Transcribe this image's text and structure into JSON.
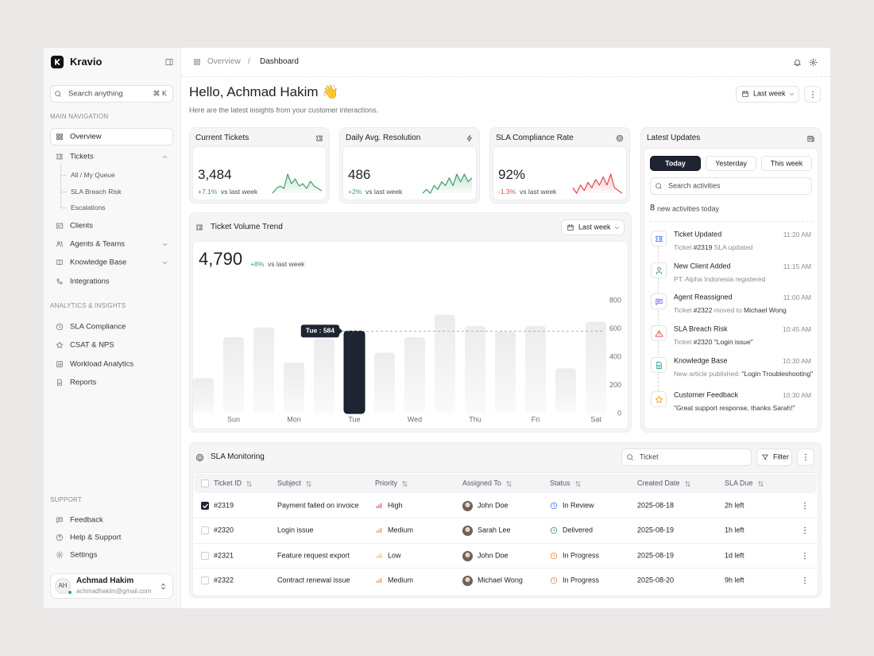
{
  "sidebar": {
    "brand": "Kravio",
    "search_placeholder": "Search anything",
    "search_shortcut": "⌘ K",
    "sections": [
      {
        "title": "MAIN NAVIGATION",
        "items": [
          {
            "label": "Overview",
            "active": true
          },
          {
            "label": "Tickets",
            "expanded": true,
            "children": [
              "All / My Queue",
              "SLA Breach Risk",
              "Escalations"
            ]
          },
          {
            "label": "Clients"
          },
          {
            "label": "Agents & Teams",
            "expandable": true
          },
          {
            "label": "Knowledge Base",
            "expandable": true
          },
          {
            "label": "Integrations"
          }
        ]
      },
      {
        "title": "ANALYTICS & INSIGHTS",
        "items": [
          {
            "label": "SLA Compliance"
          },
          {
            "label": "CSAT & NPS"
          },
          {
            "label": "Workload Analytics"
          },
          {
            "label": "Reports"
          }
        ]
      },
      {
        "title": "SUPPORT",
        "items": [
          {
            "label": "Feedback"
          },
          {
            "label": "Help & Support"
          },
          {
            "label": "Settings"
          }
        ]
      }
    ],
    "user": {
      "initials": "AH",
      "name": "Achmad Hakim",
      "email": "achmadhakim@gmail.com"
    }
  },
  "header": {
    "breadcrumb": [
      "Overview",
      "Dashboard"
    ],
    "separator": "/"
  },
  "greeting": {
    "title": "Hello, Achmad Hakim 👋",
    "subtitle": "Here are the latest insights from your customer interactions.",
    "period": "Last week"
  },
  "kpis": [
    {
      "title": "Current Tickets",
      "value": "3,484",
      "change": "+7.1%",
      "note": "vs last week",
      "color": "#3e9e68",
      "sparkline": [
        1,
        3,
        4,
        3,
        9,
        5,
        7,
        4,
        5,
        3,
        6,
        4,
        3,
        2
      ]
    },
    {
      "title": "Daily Avg. Resolution",
      "value": "486",
      "change": "+2%",
      "note": "vs last week",
      "color": "#3e9e68",
      "sparkline": [
        2,
        3,
        2,
        4,
        3,
        5,
        4,
        6,
        4,
        7,
        5,
        7,
        5,
        6
      ]
    },
    {
      "title": "SLA Compliance Rate",
      "value": "92%",
      "change": "-1.3%",
      "note": "vs last week",
      "color": "#e5484d",
      "sparkline": [
        4,
        2,
        5,
        3,
        6,
        4,
        7,
        5,
        8,
        5,
        9,
        4,
        3,
        2
      ]
    }
  ],
  "chart_data": {
    "type": "bar",
    "title": "Ticket Volume Trend",
    "total": "4,790",
    "change": "+8%",
    "note": "vs last week",
    "period": "Last week",
    "categories": [
      null,
      "Sun",
      null,
      "Mon",
      null,
      "Tue",
      null,
      "Wed",
      null,
      "Thu",
      null,
      "Fri",
      null,
      "Sat"
    ],
    "values": [
      250,
      540,
      610,
      360,
      530,
      584,
      430,
      540,
      700,
      620,
      580,
      620,
      320,
      650
    ],
    "value_labels": [
      null,
      null,
      null,
      null,
      null,
      "Tue : 584",
      null,
      null,
      null,
      null,
      null,
      null,
      null,
      null
    ],
    "color": "#ececee",
    "highlight_color": "#1e2432",
    "ylim": [
      0,
      800
    ],
    "yticks": [
      0,
      200,
      400,
      600,
      800
    ]
  },
  "updates": {
    "title": "Latest Updates",
    "tabs": [
      "Today",
      "Yesterday",
      "This week"
    ],
    "active_tab": 0,
    "search_placeholder": "Search activities",
    "count": "8",
    "count_note": "new activities today",
    "items": [
      {
        "title": "Ticket Updated",
        "time": "11:20 AM",
        "color": "#4a7bea",
        "description": [
          {
            "text": "Ticket "
          },
          {
            "text": "#2319",
            "strong": true
          },
          {
            "text": " SLA updated"
          }
        ]
      },
      {
        "title": "New Client Added",
        "time": "11:15 AM",
        "color": "#3e9e68",
        "description": [
          {
            "text": "PT. Alpha Indonesia registered"
          }
        ]
      },
      {
        "title": "Agent Reassigned",
        "time": "11:00 AM",
        "color": "#8b5cf6",
        "description": [
          {
            "text": "Ticket "
          },
          {
            "text": "#2322",
            "strong": true
          },
          {
            "text": " moved to "
          },
          {
            "text": "Michael Wong",
            "strong": true
          }
        ]
      },
      {
        "title": "SLA Breach Risk",
        "time": "10:45 AM",
        "color": "#e5484d",
        "description": [
          {
            "text": "Ticket "
          },
          {
            "text": "#2320",
            "strong": true
          },
          {
            "text": " "
          },
          {
            "text": "\"Login issue\"",
            "strong": true
          }
        ]
      },
      {
        "title": "Knowledge Base",
        "time": "10:30 AM",
        "color": "#1aa39a",
        "description": [
          {
            "text": "New article published: "
          },
          {
            "text": "\"Login Troubleshooting\"",
            "strong": true
          }
        ]
      },
      {
        "title": "Customer Feedback",
        "time": "10:30 AM",
        "color": "#f59e0b",
        "description": [
          {
            "text": "\"Great support response, thanks Sarah!\"",
            "strong": true
          }
        ]
      }
    ]
  },
  "table": {
    "title": "SLA Monitoring",
    "search_placeholder": "Ticket",
    "filter": "Filter",
    "columns": [
      "Ticket ID",
      "Subject",
      "Priority",
      "Assigned To",
      "Status",
      "Created Date",
      "SLA Due"
    ],
    "rows": [
      {
        "id": "#2319",
        "subject": "Payment failed on invoice",
        "priority": "High",
        "priority_color": "#e5484d",
        "assignee": "John Doe",
        "status": "In Review",
        "status_color": "#4a7bea",
        "created": "2025-08-18",
        "due": "2h left",
        "checked": true
      },
      {
        "id": "#2320",
        "subject": "Login issue",
        "priority": "Medium",
        "priority_color": "#f08a4b",
        "assignee": "Sarah Lee",
        "status": "Delivered",
        "status_color": "#3e9e68",
        "created": "2025-08-19",
        "due": "1h left",
        "checked": false
      },
      {
        "id": "#2321",
        "subject": "Feature request export",
        "priority": "Low",
        "priority_color": "#f2c14e",
        "assignee": "John Doe",
        "status": "In Progress",
        "status_color": "#f08a4b",
        "created": "2025-08-19",
        "due": "1d left",
        "checked": false
      },
      {
        "id": "#2322",
        "subject": "Contract renewal issue",
        "priority": "Medium",
        "priority_color": "#f08a4b",
        "assignee": "Michael Wong",
        "status": "In Progress",
        "status_color": "#f08a4b",
        "created": "2025-08-20",
        "due": "9h left",
        "checked": false
      }
    ]
  }
}
